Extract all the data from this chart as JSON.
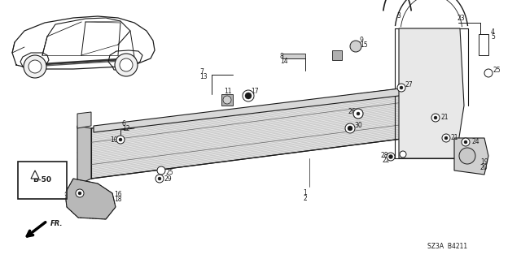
{
  "bg_color": "#ffffff",
  "line_color": "#1a1a1a",
  "fig_width": 6.4,
  "fig_height": 3.19,
  "diagram_code": "SZ3A  B4211"
}
